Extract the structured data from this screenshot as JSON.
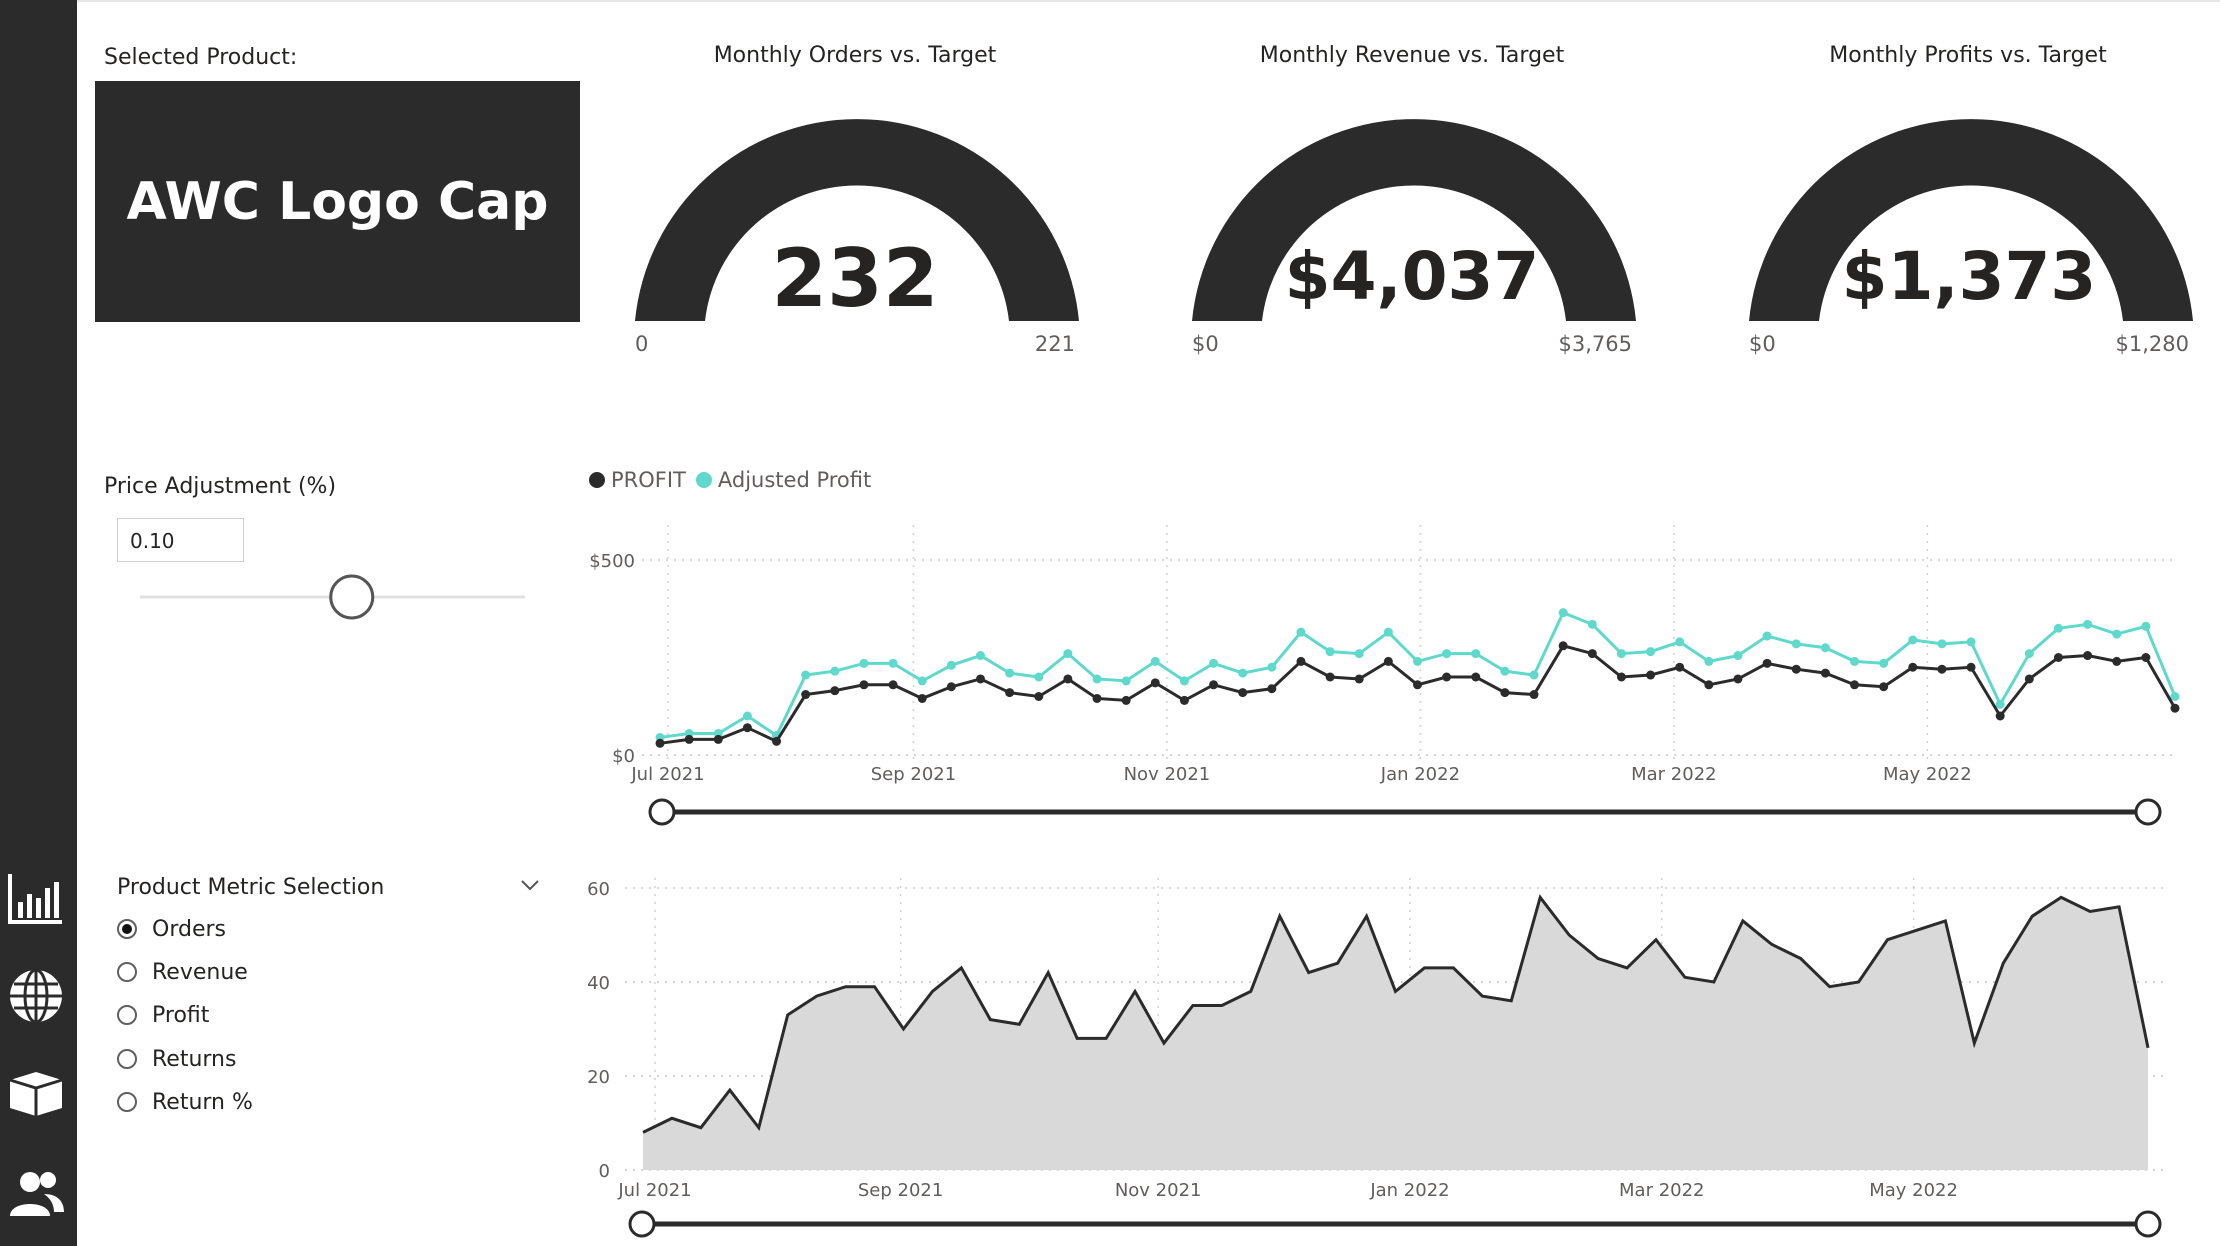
{
  "colors": {
    "dark": "#2b2b2b",
    "teal": "#5fd9cc",
    "area": "#d9d9d9"
  },
  "sidebar": {
    "icons": [
      "bar-chart-icon",
      "globe-icon",
      "box-icon",
      "users-icon"
    ]
  },
  "product": {
    "label": "Selected Product:",
    "name": "AWC Logo Cap"
  },
  "gauges": [
    {
      "title": "Monthly Orders vs. Target",
      "value": "232",
      "min": "0",
      "max": "221"
    },
    {
      "title": "Monthly Revenue vs. Target",
      "value": "$4,037",
      "min": "$0",
      "max": "$3,765"
    },
    {
      "title": "Monthly Profits vs. Target",
      "value": "$1,373",
      "min": "$0",
      "max": "$1,280"
    }
  ],
  "price_adjustment": {
    "label": "Price Adjustment (%)",
    "value": "0.10",
    "slider_fraction": 0.55
  },
  "metric_selection": {
    "label": "Product Metric Selection",
    "options": [
      "Orders",
      "Revenue",
      "Profit",
      "Returns",
      "Return %"
    ],
    "selected": "Orders"
  },
  "legend": {
    "series1": "PROFIT",
    "series2": "Adjusted Profit"
  },
  "chart_data": [
    {
      "type": "line",
      "series": [
        {
          "name": "PROFIT",
          "values": [
            30,
            40,
            40,
            70,
            35,
            155,
            165,
            180,
            180,
            145,
            175,
            195,
            160,
            150,
            195,
            145,
            140,
            185,
            140,
            180,
            160,
            170,
            240,
            200,
            195,
            240,
            180,
            200,
            200,
            160,
            155,
            280,
            260,
            200,
            205,
            225,
            180,
            195,
            235,
            220,
            210,
            180,
            175,
            225,
            220,
            225,
            100,
            195,
            250,
            255,
            240,
            250,
            120
          ]
        },
        {
          "name": "Adjusted Profit",
          "values": [
            45,
            55,
            55,
            100,
            50,
            205,
            215,
            235,
            235,
            190,
            230,
            255,
            210,
            200,
            260,
            195,
            190,
            240,
            190,
            235,
            210,
            225,
            315,
            265,
            260,
            315,
            240,
            260,
            260,
            215,
            205,
            365,
            335,
            260,
            265,
            290,
            240,
            255,
            305,
            285,
            275,
            240,
            235,
            295,
            285,
            290,
            130,
            260,
            325,
            335,
            310,
            330,
            150
          ]
        }
      ],
      "x_ticks": [
        "Jul 2021",
        "Sep 2021",
        "Nov 2021",
        "Jan 2022",
        "Mar 2022",
        "May 2022"
      ],
      "y_ticks": [
        "$0",
        "$500"
      ],
      "ylim": [
        0,
        500
      ],
      "grid": true,
      "legend": "top-left"
    },
    {
      "type": "area",
      "values": [
        8,
        11,
        9,
        17,
        9,
        33,
        37,
        39,
        39,
        30,
        38,
        43,
        32,
        31,
        42,
        28,
        28,
        38,
        27,
        35,
        35,
        38,
        54,
        42,
        44,
        54,
        38,
        43,
        43,
        37,
        36,
        58,
        50,
        45,
        43,
        49,
        41,
        40,
        53,
        48,
        45,
        39,
        40,
        49,
        51,
        53,
        27,
        44,
        54,
        58,
        55,
        56,
        26
      ],
      "x_ticks": [
        "Jul 2021",
        "Sep 2021",
        "Nov 2021",
        "Jan 2022",
        "Mar 2022",
        "May 2022"
      ],
      "y_ticks": [
        "0",
        "20",
        "40",
        "60"
      ],
      "ylim": [
        0,
        60
      ],
      "grid": true
    }
  ]
}
